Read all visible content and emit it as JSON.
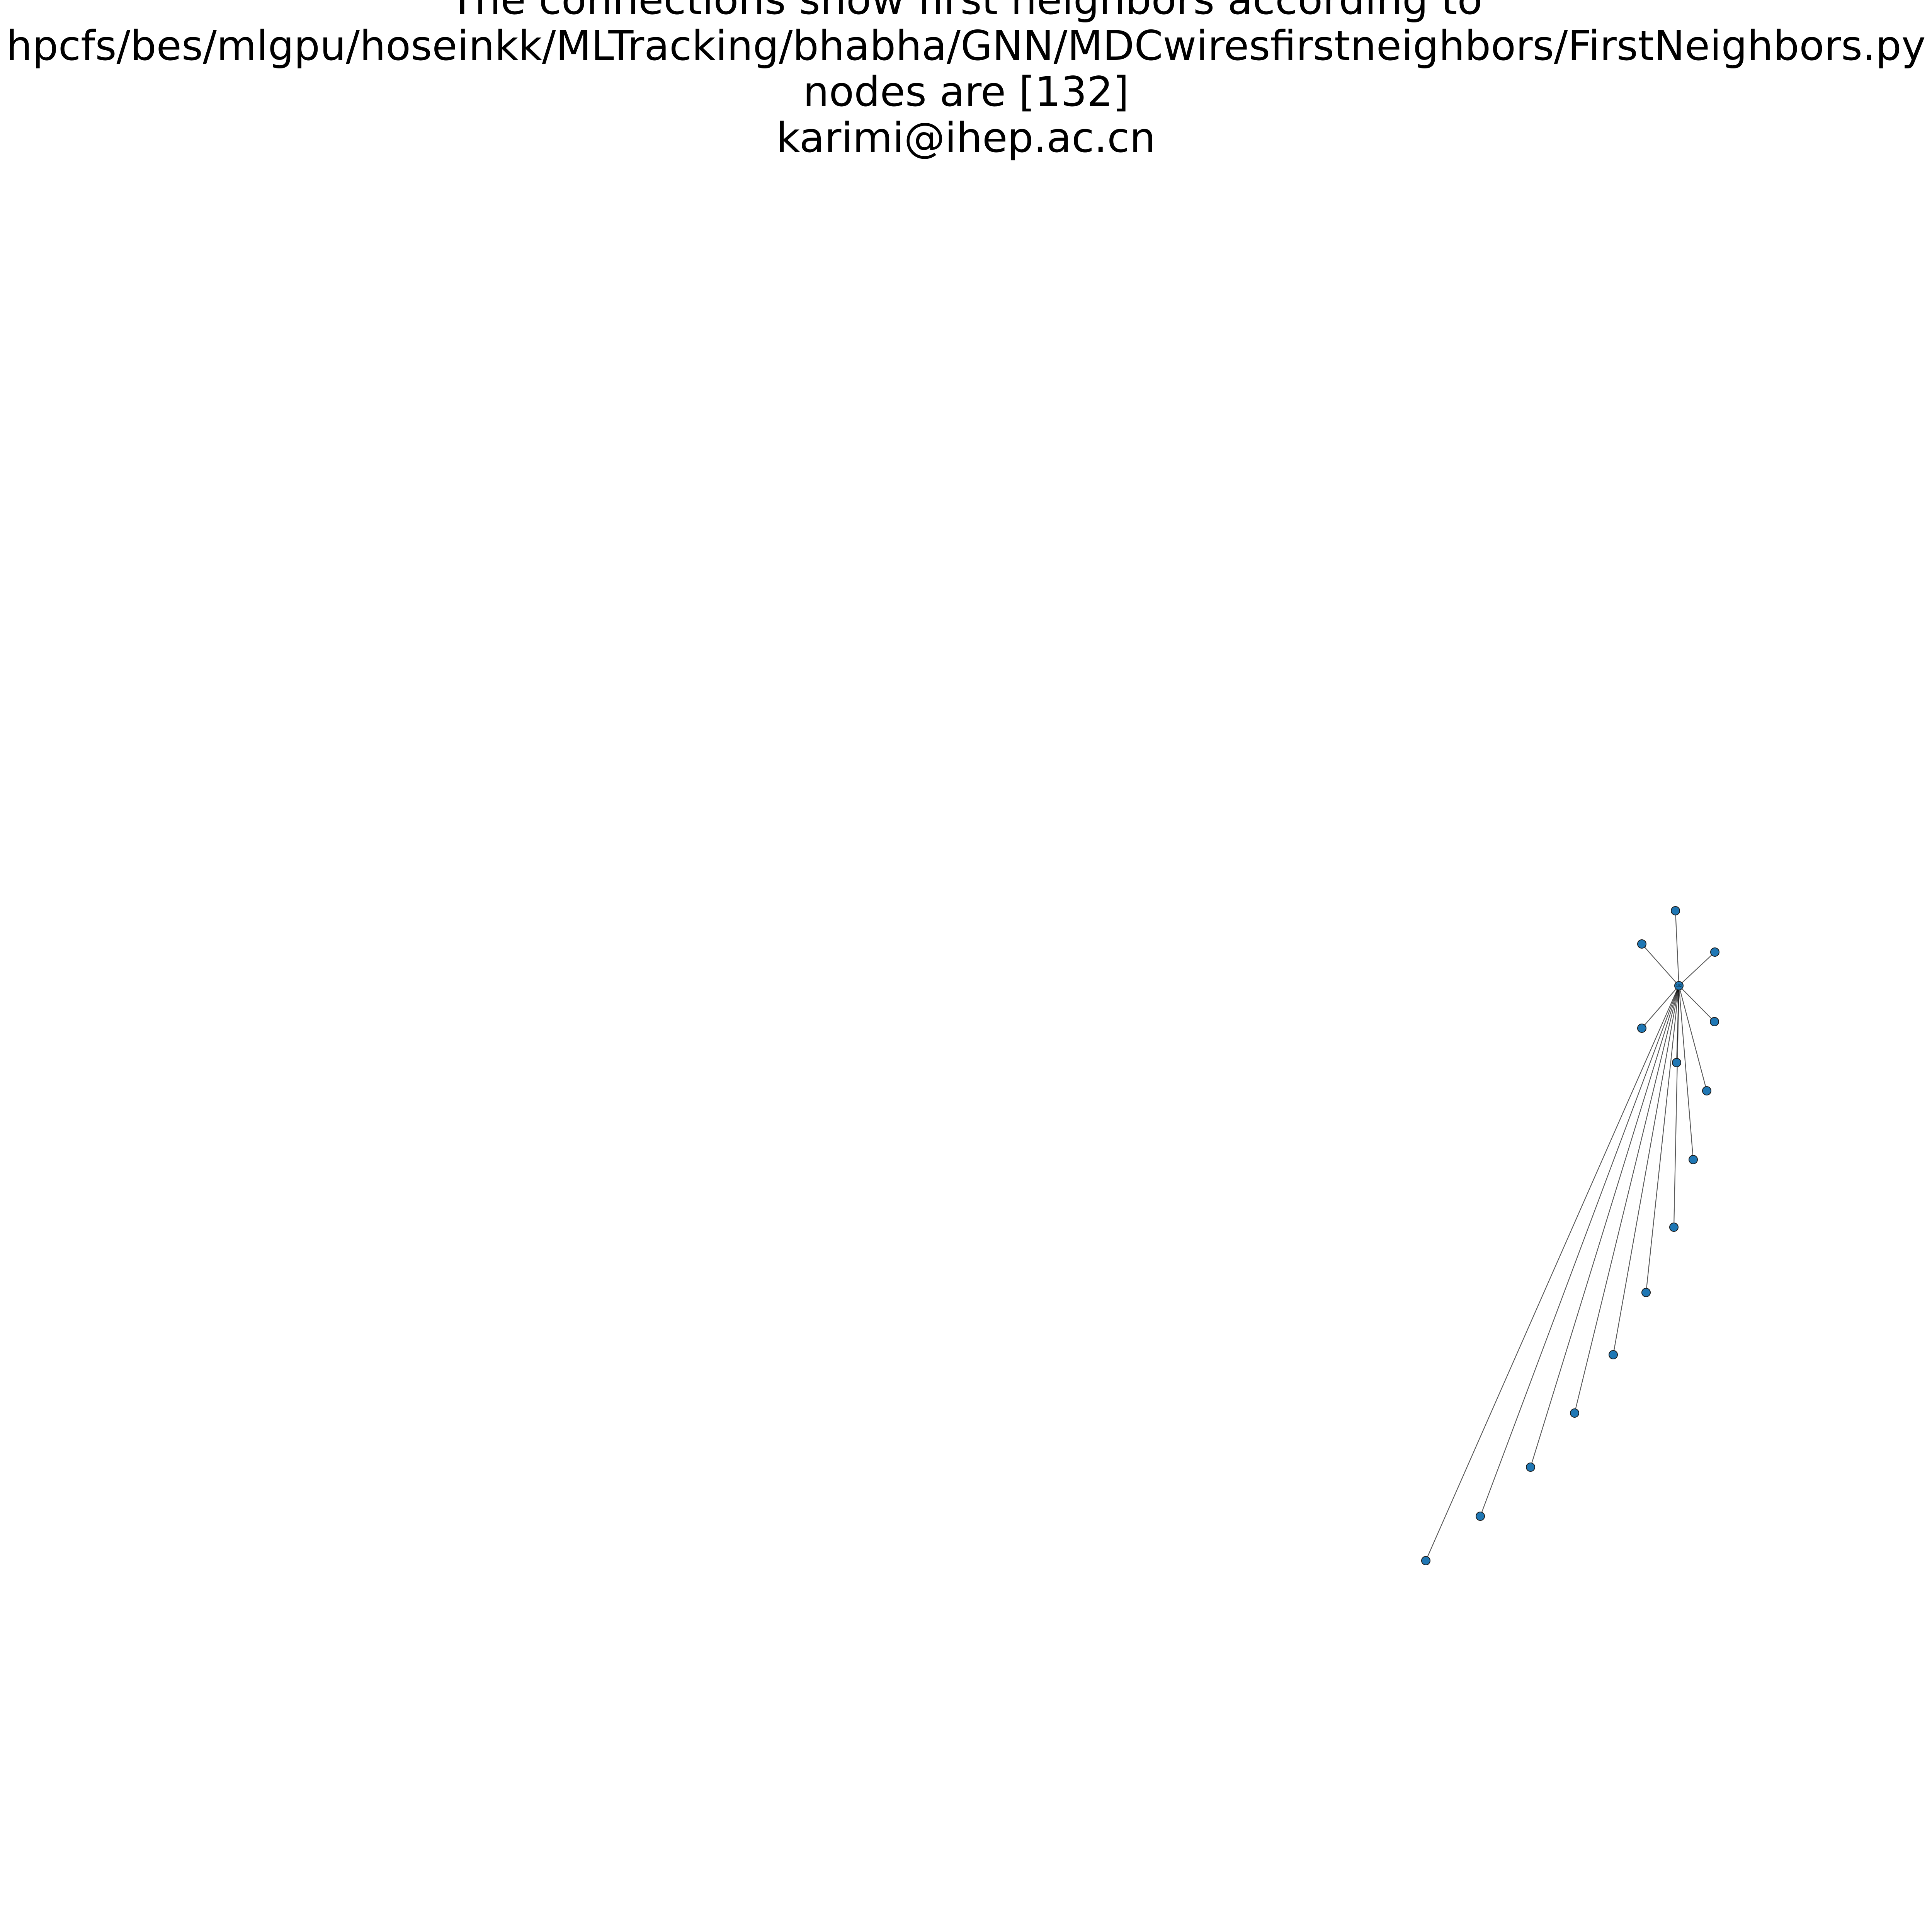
{
  "figure": {
    "title_lines": [
      "The connections show first neighbors according to",
      "hpcfs/bes/mlgpu/hoseinkk/MLTracking/bhabha/GNN/MDCwiresfirstneighbors/FirstNeighbors.py",
      "nodes are [132]",
      "karimi@ihep.ac.cn"
    ]
  },
  "graph": {
    "center_node": {
      "id": "132"
    },
    "neighbor_nodes": [
      {
        "id": ""
      },
      {
        "id": ""
      },
      {
        "id": ""
      },
      {
        "id": ""
      },
      {
        "id": ""
      },
      {
        "id": ""
      },
      {
        "id": ""
      },
      {
        "id": ""
      },
      {
        "id": ""
      },
      {
        "id": ""
      },
      {
        "id": ""
      },
      {
        "id": ""
      },
      {
        "id": ""
      },
      {
        "id": ""
      },
      {
        "id": ""
      },
      {
        "id": ""
      }
    ],
    "node_color": "#1f77b4",
    "edge_color": "#000000",
    "background": "#ffffff"
  }
}
